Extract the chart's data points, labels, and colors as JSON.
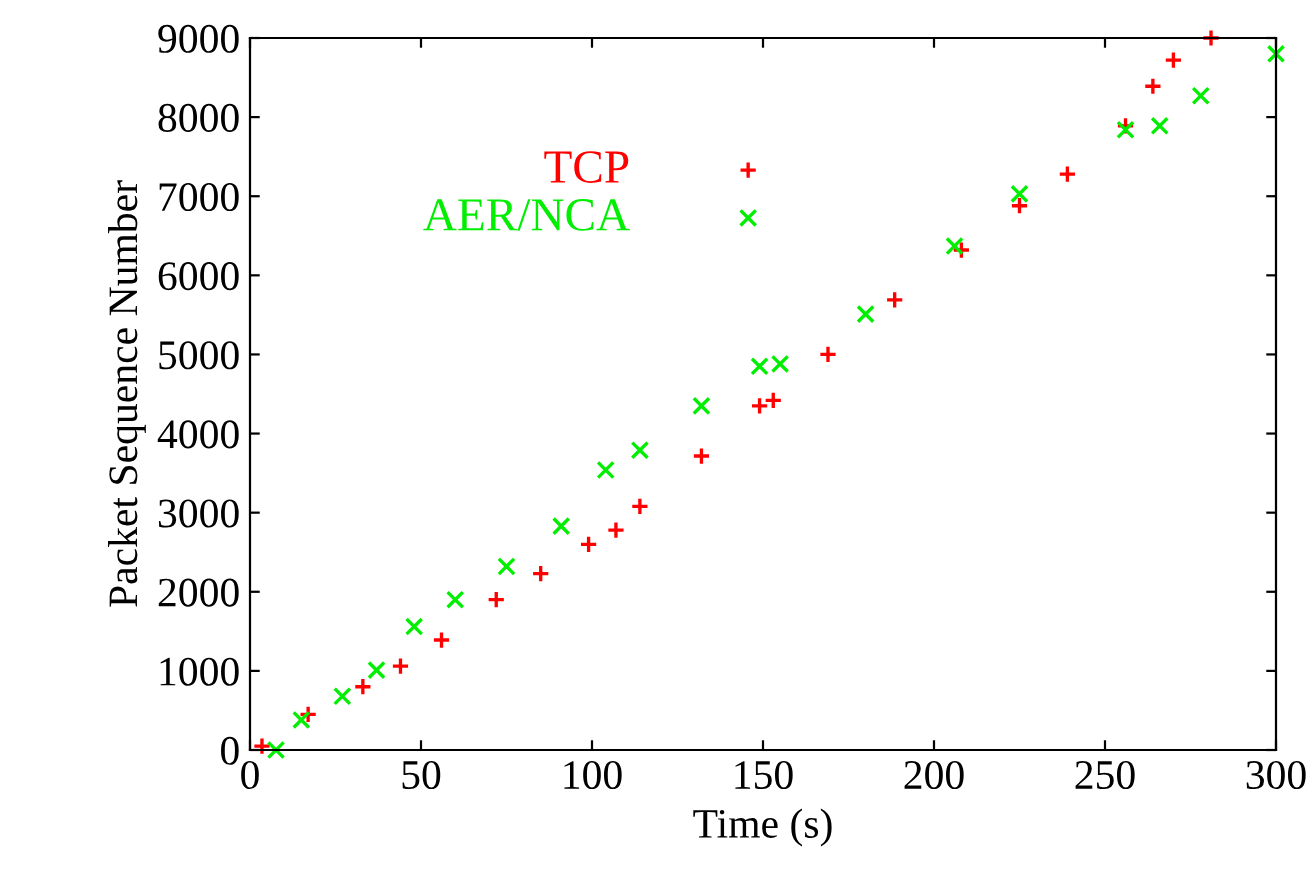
{
  "chart_data": {
    "type": "scatter",
    "xlabel": "Time (s)",
    "ylabel": "Packet Sequence Number",
    "xlim": [
      0,
      300
    ],
    "ylim": [
      0,
      9000
    ],
    "xticks": [
      0,
      50,
      100,
      150,
      200,
      250,
      300
    ],
    "yticks": [
      0,
      1000,
      2000,
      3000,
      4000,
      5000,
      6000,
      7000,
      8000,
      9000
    ],
    "grid": false,
    "legend": "top",
    "series": [
      {
        "name": "TCP",
        "color": "#ff0000",
        "marker": "plus",
        "x": [
          3.5,
          17,
          33,
          44,
          56,
          72,
          85,
          99,
          107,
          114,
          132,
          149,
          153,
          169,
          188.5,
          208,
          225,
          239,
          256,
          264,
          270,
          281
        ],
        "values": [
          50,
          450,
          800,
          1060,
          1390,
          1900,
          2230,
          2600,
          2780,
          3080,
          3716,
          4350,
          4420,
          5000,
          5690,
          6320,
          6880,
          7280,
          7890,
          8390,
          8720,
          9000
        ]
      },
      {
        "name": "AER/NCA",
        "color": "#00ee00",
        "marker": "cross",
        "x": [
          7.6,
          15,
          27,
          37,
          48,
          60,
          75,
          91,
          104,
          114,
          132,
          149,
          155,
          180,
          206,
          225,
          256,
          266,
          278,
          300
        ],
        "values": [
          0,
          380,
          680,
          1010,
          1560,
          1900,
          2320,
          2830,
          3540,
          3790,
          4350,
          4850,
          4880,
          5510,
          6370,
          7030,
          7840,
          7890,
          8270,
          8800
        ]
      }
    ]
  }
}
